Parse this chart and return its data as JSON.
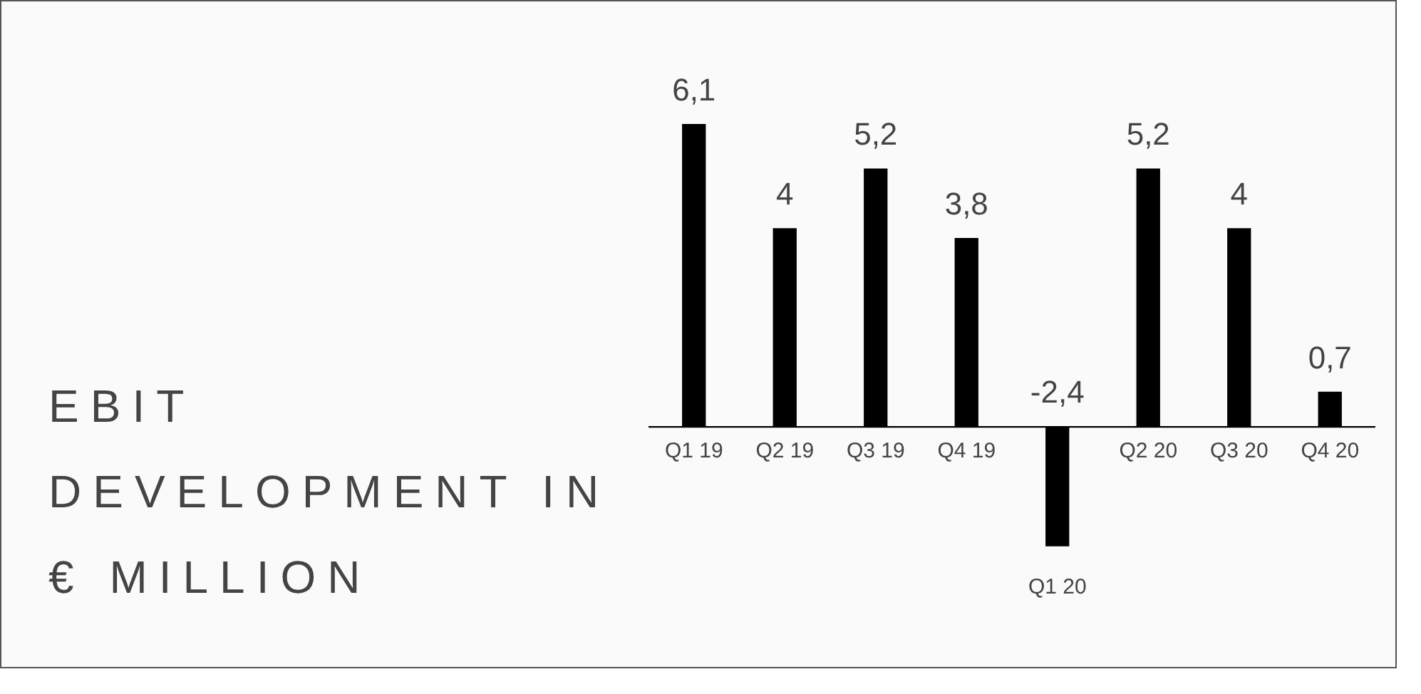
{
  "chart_data": {
    "type": "bar",
    "title": "EBIT DEVELOPMENT IN € MILLION",
    "categories": [
      "Q1 19",
      "Q2 19",
      "Q3 19",
      "Q4 19",
      "Q1 20",
      "Q2 20",
      "Q3 20",
      "Q4 20"
    ],
    "values": [
      6.1,
      4,
      5.2,
      3.8,
      -2.4,
      5.2,
      4,
      0.7
    ],
    "value_labels": [
      "6,1",
      "4",
      "5,2",
      "3,8",
      "-2,4",
      "5,2",
      "4",
      "0,7"
    ],
    "color": "#000000"
  }
}
